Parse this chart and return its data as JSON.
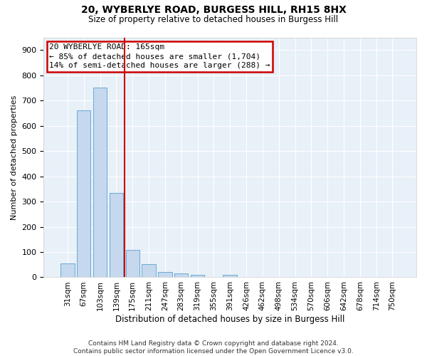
{
  "title": "20, WYBERLYE ROAD, BURGESS HILL, RH15 8HX",
  "subtitle": "Size of property relative to detached houses in Burgess Hill",
  "xlabel": "Distribution of detached houses by size in Burgess Hill",
  "ylabel": "Number of detached properties",
  "bin_labels": [
    "31sqm",
    "67sqm",
    "103sqm",
    "139sqm",
    "175sqm",
    "211sqm",
    "247sqm",
    "283sqm",
    "319sqm",
    "355sqm",
    "391sqm",
    "426sqm",
    "462sqm",
    "498sqm",
    "534sqm",
    "570sqm",
    "606sqm",
    "642sqm",
    "678sqm",
    "714sqm",
    "750sqm"
  ],
  "bar_values": [
    55,
    660,
    750,
    335,
    108,
    52,
    22,
    14,
    9,
    0,
    10,
    0,
    0,
    0,
    0,
    0,
    0,
    0,
    0,
    0,
    0
  ],
  "bar_color": "#c5d8ee",
  "bar_edgecolor": "#6aaad4",
  "vline_bin_index": 3,
  "vline_color": "#cc0000",
  "annotation_line1": "20 WYBERLYE ROAD: 165sqm",
  "annotation_line2": "← 85% of detached houses are smaller (1,704)",
  "annotation_line3": "14% of semi-detached houses are larger (288) →",
  "annotation_box_color": "#cc0000",
  "ylim": [
    0,
    950
  ],
  "yticks": [
    0,
    100,
    200,
    300,
    400,
    500,
    600,
    700,
    800,
    900
  ],
  "bg_color": "#e8f0f8",
  "grid_color": "#ffffff",
  "footer": "Contains HM Land Registry data © Crown copyright and database right 2024.\nContains public sector information licensed under the Open Government Licence v3.0."
}
